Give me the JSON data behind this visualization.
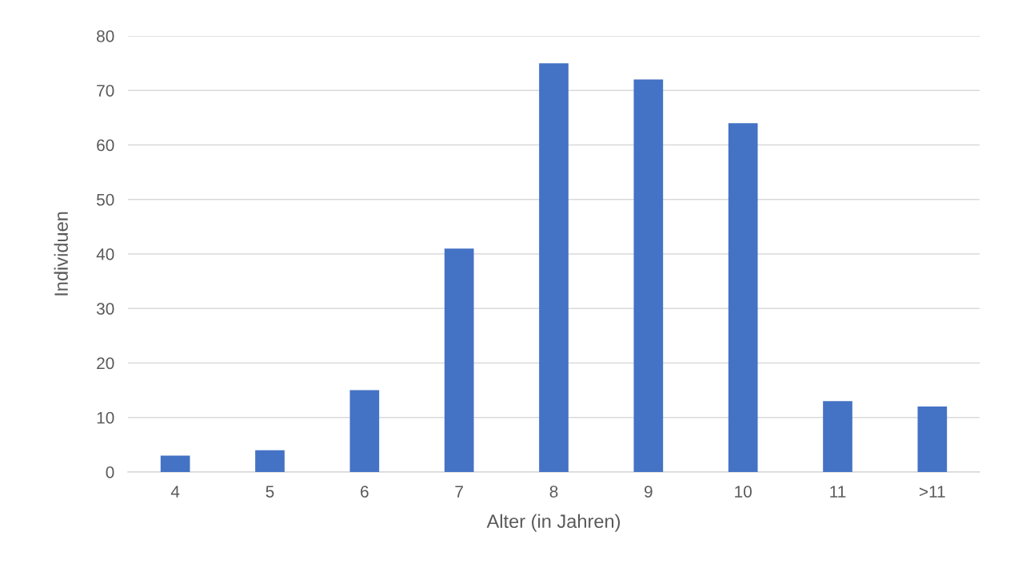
{
  "chart_data": {
    "type": "bar",
    "xlabel": "Alter (in Jahren)",
    "ylabel": "Individuen",
    "categories": [
      "4",
      "5",
      "6",
      "7",
      "8",
      "9",
      "10",
      "11",
      ">11"
    ],
    "values": [
      3,
      4,
      15,
      41,
      75,
      72,
      64,
      13,
      12
    ],
    "color": "#4472c4",
    "ylim": [
      0,
      80
    ],
    "yticks": [
      0,
      10,
      20,
      30,
      40,
      50,
      60,
      70,
      80
    ],
    "grid": "y",
    "legend": false
  }
}
